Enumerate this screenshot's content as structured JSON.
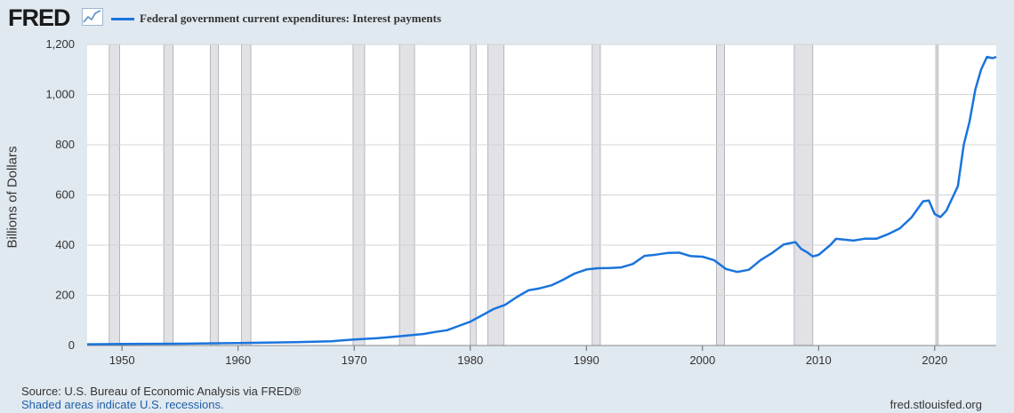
{
  "header": {
    "logo_text": "FRED",
    "logo_icon": "line-chart-icon",
    "legend_label": "Federal government current expenditures: Interest payments",
    "series_color": "#1a74dc"
  },
  "footer": {
    "source": "Source: U.S. Bureau of Economic Analysis via FRED®",
    "recession_note": "Shaded areas indicate U.S. recessions.",
    "site": "fred.stlouisfed.org"
  },
  "chart_data": {
    "type": "line",
    "title": "",
    "xlabel": "",
    "ylabel": "Billions of Dollars",
    "xlim": [
      1947.0,
      2025.3
    ],
    "ylim": [
      0,
      1200
    ],
    "yticks": [
      0,
      200,
      400,
      600,
      800,
      1000,
      1200
    ],
    "ytick_labels": [
      "0",
      "200",
      "400",
      "600",
      "800",
      "1,000",
      "1,200"
    ],
    "xticks": [
      1950,
      1960,
      1970,
      1980,
      1990,
      2000,
      2010,
      2020
    ],
    "xtick_labels": [
      "1950",
      "1960",
      "1970",
      "1980",
      "1990",
      "2000",
      "2010",
      "2020"
    ],
    "grid": true,
    "legend": "top-left",
    "recessions": [
      [
        1948.9,
        1949.8
      ],
      [
        1953.6,
        1954.4
      ],
      [
        1957.6,
        1958.3
      ],
      [
        1960.3,
        1961.1
      ],
      [
        1969.9,
        1970.9
      ],
      [
        1973.9,
        1975.2
      ],
      [
        1980.0,
        1980.5
      ],
      [
        1981.5,
        1982.9
      ],
      [
        1990.5,
        1991.2
      ],
      [
        2001.2,
        2001.9
      ],
      [
        2007.9,
        2009.5
      ],
      [
        2020.1,
        2020.3
      ]
    ],
    "series": [
      {
        "x": [
          1947,
          1950,
          1955,
          1960,
          1965,
          1968,
          1970,
          1972,
          1974,
          1976,
          1977,
          1978,
          1979,
          1980,
          1981,
          1982,
          1983,
          1984,
          1985,
          1986,
          1987,
          1988,
          1989,
          1990,
          1991,
          1992,
          1993,
          1994,
          1995,
          1996,
          1997,
          1998,
          1999,
          2000,
          2001,
          2002,
          2003,
          2004,
          2005,
          2006,
          2007,
          2008,
          2008.5,
          2009,
          2009.5,
          2010,
          2011,
          2011.5,
          2012,
          2013,
          2014,
          2015,
          2016,
          2017,
          2018,
          2019,
          2019.5,
          2020,
          2020.5,
          2021,
          2022,
          2022.5,
          2023,
          2023.5,
          2024,
          2024.5,
          2025,
          2025.3
        ],
        "values": [
          5,
          6,
          7,
          10,
          13,
          17,
          24,
          29,
          37,
          46,
          54,
          61,
          78,
          95,
          120,
          145,
          162,
          193,
          220,
          228,
          240,
          262,
          287,
          303,
          308,
          309,
          311,
          325,
          357,
          362,
          369,
          370,
          356,
          354,
          340,
          305,
          293,
          302,
          340,
          369,
          403,
          412,
          385,
          372,
          355,
          361,
          400,
          425,
          423,
          418,
          426,
          426,
          444,
          467,
          510,
          575,
          578,
          524,
          512,
          537,
          635,
          800,
          892,
          1020,
          1100,
          1150,
          1145,
          1150
        ]
      }
    ]
  }
}
